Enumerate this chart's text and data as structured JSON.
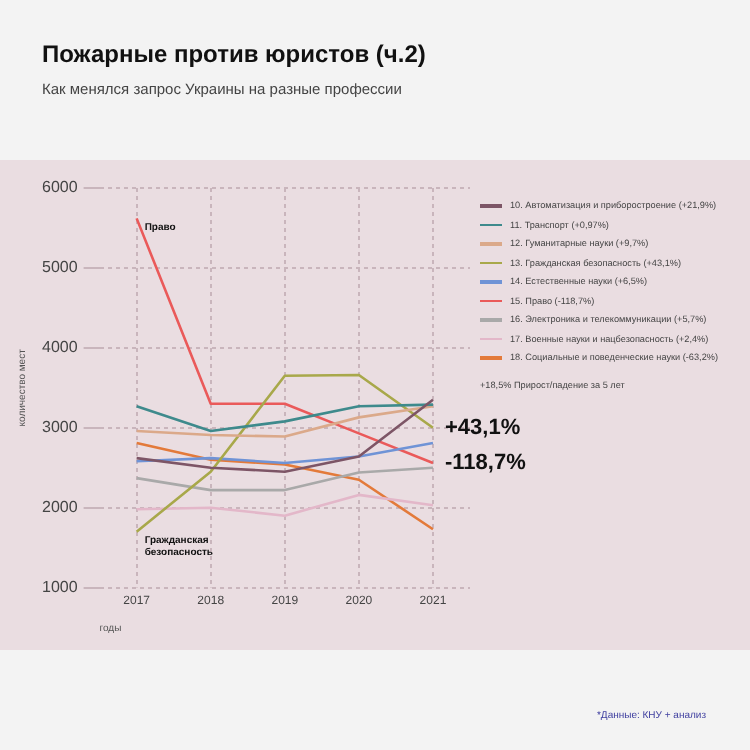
{
  "chart_data": {
    "type": "line",
    "title": "Пожарные против юристов (ч.2)",
    "subtitle": "Как менялся запрос Украины на разные профессии",
    "xlabel": "годы",
    "ylabel": "количество мест",
    "categories": [
      "2017",
      "2018",
      "2019",
      "2020",
      "2021"
    ],
    "series": [
      {
        "name": "10. Автоматизация и приборостроение (+21,9%)",
        "color": "#7d5566",
        "values": [
          2620,
          2500,
          2450,
          2640,
          3350
        ]
      },
      {
        "name": "11. Транспорт (+0,97%)",
        "color": "#3e8a8c",
        "values": [
          3270,
          2960,
          3080,
          3270,
          3290
        ]
      },
      {
        "name": "12. Гуманитарные науки (+9,7%)",
        "color": "#dba98a",
        "values": [
          2960,
          2910,
          2890,
          3130,
          3270
        ]
      },
      {
        "name": "13. Гражданская безопасность (+43,1%)",
        "color": "#a8a84a",
        "values": [
          1700,
          2450,
          3650,
          3660,
          3000
        ]
      },
      {
        "name": "14. Естественные науки (+6,5%)",
        "color": "#6f93d6",
        "values": [
          2580,
          2620,
          2560,
          2640,
          2810
        ]
      },
      {
        "name": "15. Право (-118,7%)",
        "color": "#ea5a5a",
        "values": [
          5620,
          3300,
          3300,
          2930,
          2560
        ]
      },
      {
        "name": "16. Электроника и телекоммуникации (+5,7%)",
        "color": "#a9a9a9",
        "values": [
          2370,
          2220,
          2220,
          2440,
          2500
        ]
      },
      {
        "name": "17. Военные науки и нацбезопасность (+2,4%)",
        "color": "#e3b7c9",
        "values": [
          1980,
          2000,
          1900,
          2160,
          2030
        ]
      },
      {
        "name": "18. Социальные и поведенческие науки (-63,2%)",
        "color": "#e37a3a",
        "values": [
          2810,
          2600,
          2540,
          2350,
          1730
        ]
      }
    ],
    "ylim": [
      1000,
      6000
    ],
    "yticks": [
      1000,
      2000,
      3000,
      4000,
      5000,
      6000
    ],
    "grid": true,
    "legend": "right",
    "marker": "none",
    "annotations": [
      {
        "text": "Право",
        "x": "2017",
        "y": 5620
      },
      {
        "text": "Гражданская безопасность",
        "x": "2017",
        "y": 1700
      },
      {
        "text": "+43,1%",
        "x": "2021",
        "y": 3000
      },
      {
        "text": "-118,7%",
        "x": "2021",
        "y": 2560
      },
      "+18,5% Прирост/падение за 5 лет",
      "*Данные: КНУ + анализ"
    ]
  }
}
